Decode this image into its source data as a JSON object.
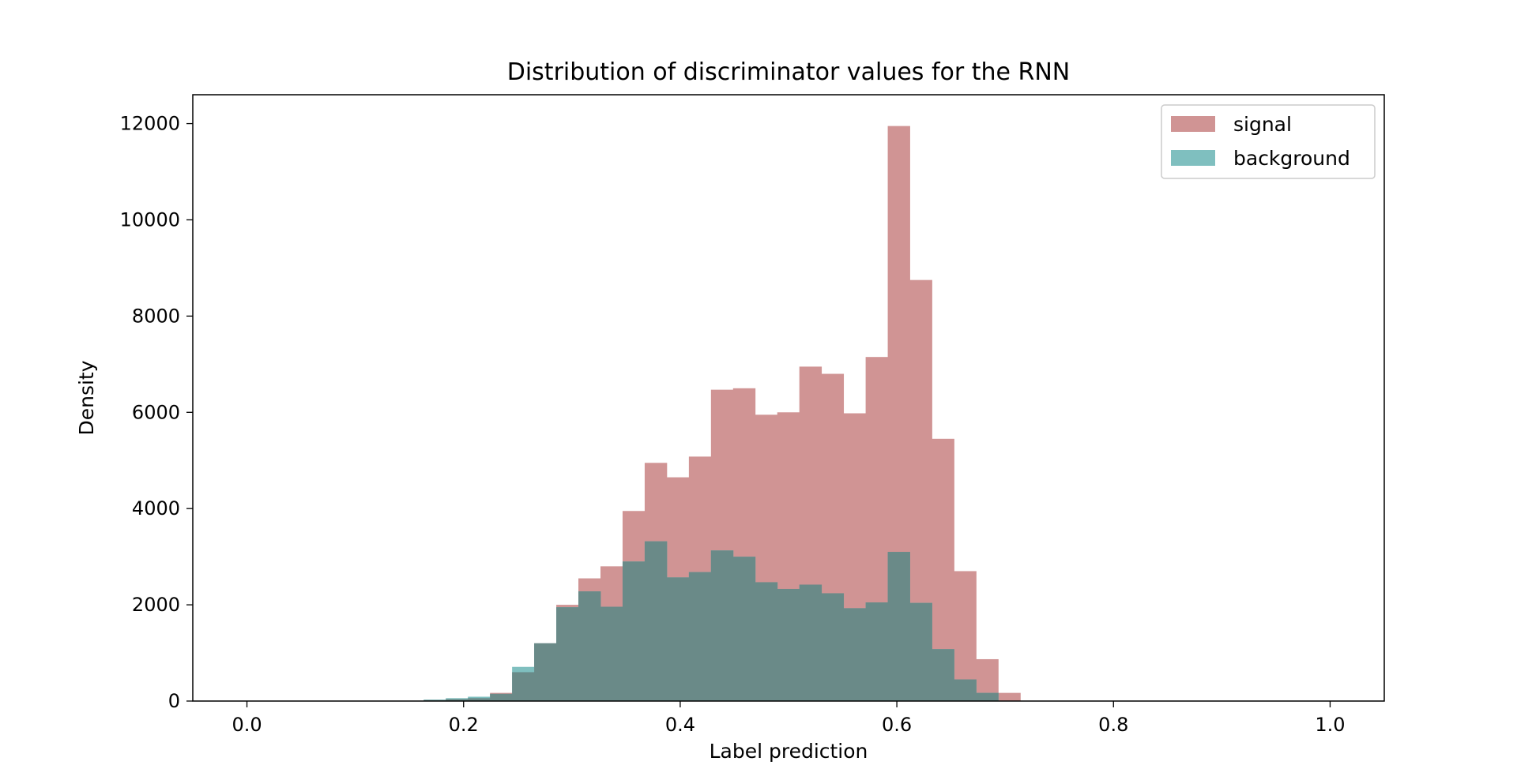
{
  "chart_data": {
    "type": "bar",
    "title": "Distribution of discriminator values for the RNN",
    "xlabel": "Label prediction",
    "ylabel": "Density",
    "xlim": [
      -0.05,
      1.05
    ],
    "ylim": [
      0,
      12600
    ],
    "xticks": [
      0.0,
      0.2,
      0.4,
      0.6,
      0.8,
      1.0
    ],
    "xtick_labels": [
      "0.0",
      "0.2",
      "0.4",
      "0.6",
      "0.8",
      "1.0"
    ],
    "yticks": [
      0,
      2000,
      4000,
      6000,
      8000,
      10000,
      12000
    ],
    "ytick_labels": [
      "0",
      "2000",
      "4000",
      "6000",
      "8000",
      "10000",
      "12000"
    ],
    "grid": false,
    "legend_position": "top-right",
    "bins": {
      "start": 0.0,
      "width": 0.0204,
      "count": 35
    },
    "series": [
      {
        "name": "signal",
        "color": "#d09494",
        "values": [
          0,
          0,
          0,
          0,
          0,
          0,
          0,
          0,
          20,
          40,
          60,
          170,
          600,
          1200,
          2000,
          2550,
          2800,
          3950,
          4950,
          4650,
          5080,
          6470,
          6500,
          5950,
          6000,
          6950,
          6800,
          5980,
          7150,
          11950,
          8750,
          5450,
          2700,
          870,
          170
        ]
      },
      {
        "name": "background",
        "color": "#7fbfbf",
        "values": [
          0,
          0,
          0,
          0,
          0,
          0,
          0,
          0,
          30,
          60,
          90,
          150,
          710,
          1200,
          1950,
          2280,
          1960,
          2900,
          3320,
          2570,
          2680,
          3130,
          3000,
          2470,
          2330,
          2420,
          2240,
          1930,
          2050,
          3100,
          2040,
          1080,
          450,
          170,
          0
        ]
      }
    ]
  }
}
